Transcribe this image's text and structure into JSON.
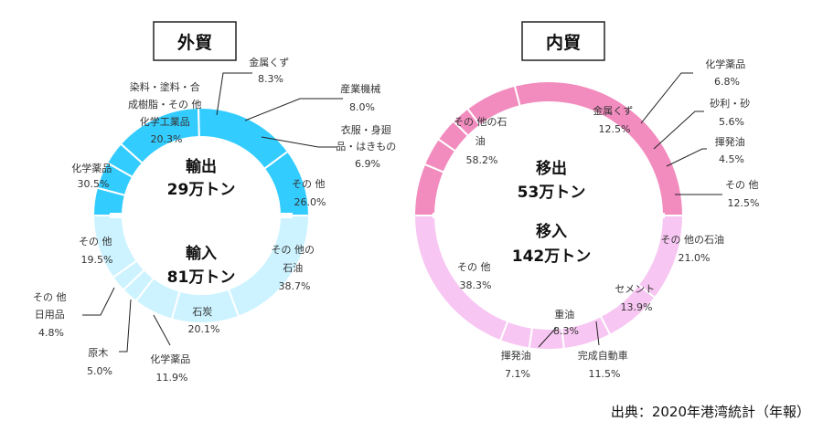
{
  "source_note": "出典：2020年港湾統計（年報）",
  "colors": {
    "gaibo_outer": "#33CCFF",
    "gaibo_inner": "#CCF3FF",
    "naibo_outer": "#F28CBF",
    "naibo_inner": "#F7C6F2"
  },
  "chart_data": [
    {
      "type": "pie",
      "title": "外貿",
      "rings": [
        {
          "name": "輸出",
          "center_label": [
            "輸出",
            "29万トン"
          ],
          "slices": [
            {
              "label": "金属くず",
              "value": 8.3
            },
            {
              "label": "産業機械",
              "value": 8.0
            },
            {
              "label": "衣服・身廻品・はきもの",
              "value": 6.9
            },
            {
              "label": "その 他",
              "value": 26.0
            },
            {
              "label": "化学薬品",
              "value": 30.5
            },
            {
              "label": "染料・塗料・合成樹脂・その 他化学工業品",
              "value": 20.3
            }
          ]
        },
        {
          "name": "輸入",
          "center_label": [
            "輸入",
            "81万トン"
          ],
          "slices": [
            {
              "label": "その 他の石油",
              "value": 38.7
            },
            {
              "label": "石炭",
              "value": 20.1
            },
            {
              "label": "化学薬品",
              "value": 11.9
            },
            {
              "label": "原木",
              "value": 5.0
            },
            {
              "label": "その 他日用品",
              "value": 4.8
            },
            {
              "label": "その 他",
              "value": 19.5
            }
          ]
        }
      ]
    },
    {
      "type": "pie",
      "title": "内貿",
      "rings": [
        {
          "name": "移出",
          "center_label": [
            "移出",
            "53万トン"
          ],
          "slices": [
            {
              "label": "金属くず",
              "value": 12.5
            },
            {
              "label": "化学薬品",
              "value": 6.8
            },
            {
              "label": "砂利・砂",
              "value": 5.6
            },
            {
              "label": "揮発油",
              "value": 4.5
            },
            {
              "label": "その 他",
              "value": 12.5
            },
            {
              "label": "その 他の石油",
              "value": 58.2
            }
          ]
        },
        {
          "name": "移入",
          "center_label": [
            "移入",
            "142万トン"
          ],
          "slices": [
            {
              "label": "その 他の石油",
              "value": 21.0
            },
            {
              "label": "セメント",
              "value": 13.9
            },
            {
              "label": "完成自動車",
              "value": 11.5
            },
            {
              "label": "重油",
              "value": 8.3
            },
            {
              "label": "揮発油",
              "value": 7.1
            },
            {
              "label": "その 他",
              "value": 38.3
            }
          ]
        }
      ]
    }
  ]
}
